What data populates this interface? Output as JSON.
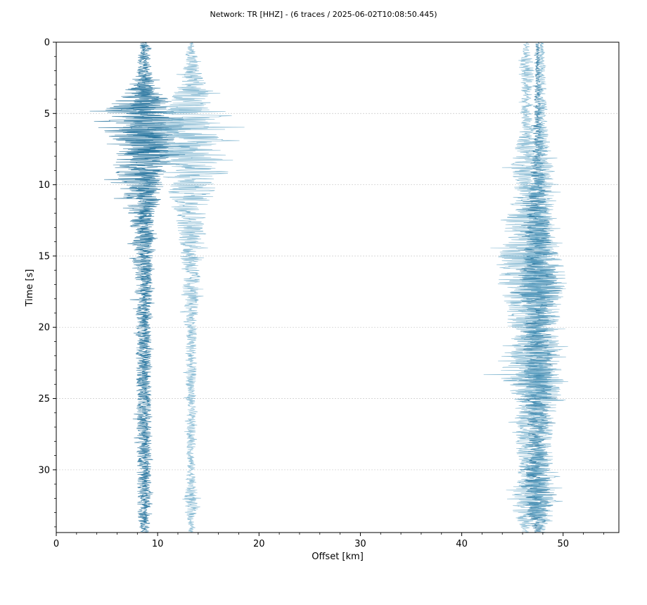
{
  "chart_data": {
    "type": "line",
    "title": "Network: TR [HHZ] - (6 traces / 2025-06-02T10:08:50.445)",
    "xlabel": "Offset [km]",
    "ylabel": "Time [s]",
    "xlim": [
      0,
      55.5
    ],
    "ylim": [
      0,
      34.4
    ],
    "y_inverted": true,
    "x_ticks": [
      0,
      10,
      20,
      30,
      40,
      50
    ],
    "y_ticks": [
      0,
      5,
      10,
      15,
      20,
      25,
      30
    ],
    "grid": "horizontal-dotted",
    "legend": "none",
    "colors": {
      "dark": "#1f6f9a",
      "light": "#5fa3c4"
    },
    "traces": [
      {
        "offset_km": 8.5,
        "color": "dark",
        "envelope": [
          [
            0,
            0.3
          ],
          [
            2,
            0.6
          ],
          [
            3.5,
            1.8
          ],
          [
            4.5,
            3.5
          ],
          [
            5.5,
            4.5
          ],
          [
            6.5,
            4.3
          ],
          [
            7.5,
            3.2
          ],
          [
            9,
            2.8
          ],
          [
            10,
            2.2
          ],
          [
            12,
            1.4
          ],
          [
            15,
            0.9
          ],
          [
            20,
            0.7
          ],
          [
            25,
            0.6
          ],
          [
            30,
            0.6
          ],
          [
            33,
            0.5
          ],
          [
            34.4,
            0.3
          ]
        ]
      },
      {
        "offset_km": 8.9,
        "color": "dark",
        "envelope": [
          [
            0,
            0.3
          ],
          [
            2,
            0.5
          ],
          [
            3.5,
            1.2
          ],
          [
            5,
            2.5
          ],
          [
            6.5,
            2.8
          ],
          [
            8,
            2.0
          ],
          [
            10,
            1.2
          ],
          [
            13,
            0.7
          ],
          [
            20,
            0.5
          ],
          [
            30,
            0.5
          ],
          [
            34.4,
            0.3
          ]
        ]
      },
      {
        "offset_km": 13.3,
        "color": "light",
        "envelope": [
          [
            0,
            0.2
          ],
          [
            1,
            0.6
          ],
          [
            2,
            1.0
          ],
          [
            3,
            1.6
          ],
          [
            4,
            2.0
          ],
          [
            5,
            2.8
          ],
          [
            6,
            3.8
          ],
          [
            7,
            3.6
          ],
          [
            8,
            3.5
          ],
          [
            9,
            3.0
          ],
          [
            10,
            2.5
          ],
          [
            11,
            2.2
          ],
          [
            12.5,
            1.5
          ],
          [
            14,
            1.2
          ],
          [
            16,
            1.0
          ],
          [
            18,
            0.8
          ],
          [
            20,
            0.6
          ],
          [
            25,
            0.5
          ],
          [
            30,
            0.4
          ],
          [
            32,
            0.7
          ],
          [
            33,
            0.5
          ],
          [
            34.4,
            0.2
          ]
        ]
      },
      {
        "offset_km": 46.4,
        "color": "light",
        "envelope": [
          [
            0,
            0.2
          ],
          [
            2,
            0.8
          ],
          [
            4,
            0.5
          ],
          [
            6,
            0.6
          ],
          [
            8.5,
            1.6
          ],
          [
            10,
            1.2
          ],
          [
            14,
            2.6
          ],
          [
            16.5,
            3.2
          ],
          [
            17.5,
            2.5
          ],
          [
            20,
            1.8
          ],
          [
            22,
            1.6
          ],
          [
            23.3,
            2.8
          ],
          [
            25,
            1.3
          ],
          [
            28,
            1.1
          ],
          [
            30,
            0.9
          ],
          [
            32.5,
            1.8
          ],
          [
            34,
            0.6
          ],
          [
            34.4,
            0.2
          ]
        ]
      },
      {
        "offset_km": 47.5,
        "color": "dark",
        "envelope": [
          [
            0,
            0.2
          ],
          [
            5,
            0.4
          ],
          [
            10,
            0.8
          ],
          [
            15,
            1.5
          ],
          [
            16.5,
            2.0
          ],
          [
            20,
            1.3
          ],
          [
            23.5,
            1.6
          ],
          [
            28,
            0.9
          ],
          [
            32.5,
            1.5
          ],
          [
            34.4,
            0.3
          ]
        ]
      },
      {
        "offset_km": 47.9,
        "color": "light",
        "envelope": [
          [
            0,
            0.2
          ],
          [
            2,
            0.4
          ],
          [
            6,
            0.6
          ],
          [
            9,
            1.2
          ],
          [
            13,
            1.2
          ],
          [
            16.5,
            2.6
          ],
          [
            20,
            1.6
          ],
          [
            23.3,
            2.0
          ],
          [
            28,
            1.0
          ],
          [
            32.5,
            1.6
          ],
          [
            34.4,
            0.3
          ]
        ]
      }
    ]
  }
}
